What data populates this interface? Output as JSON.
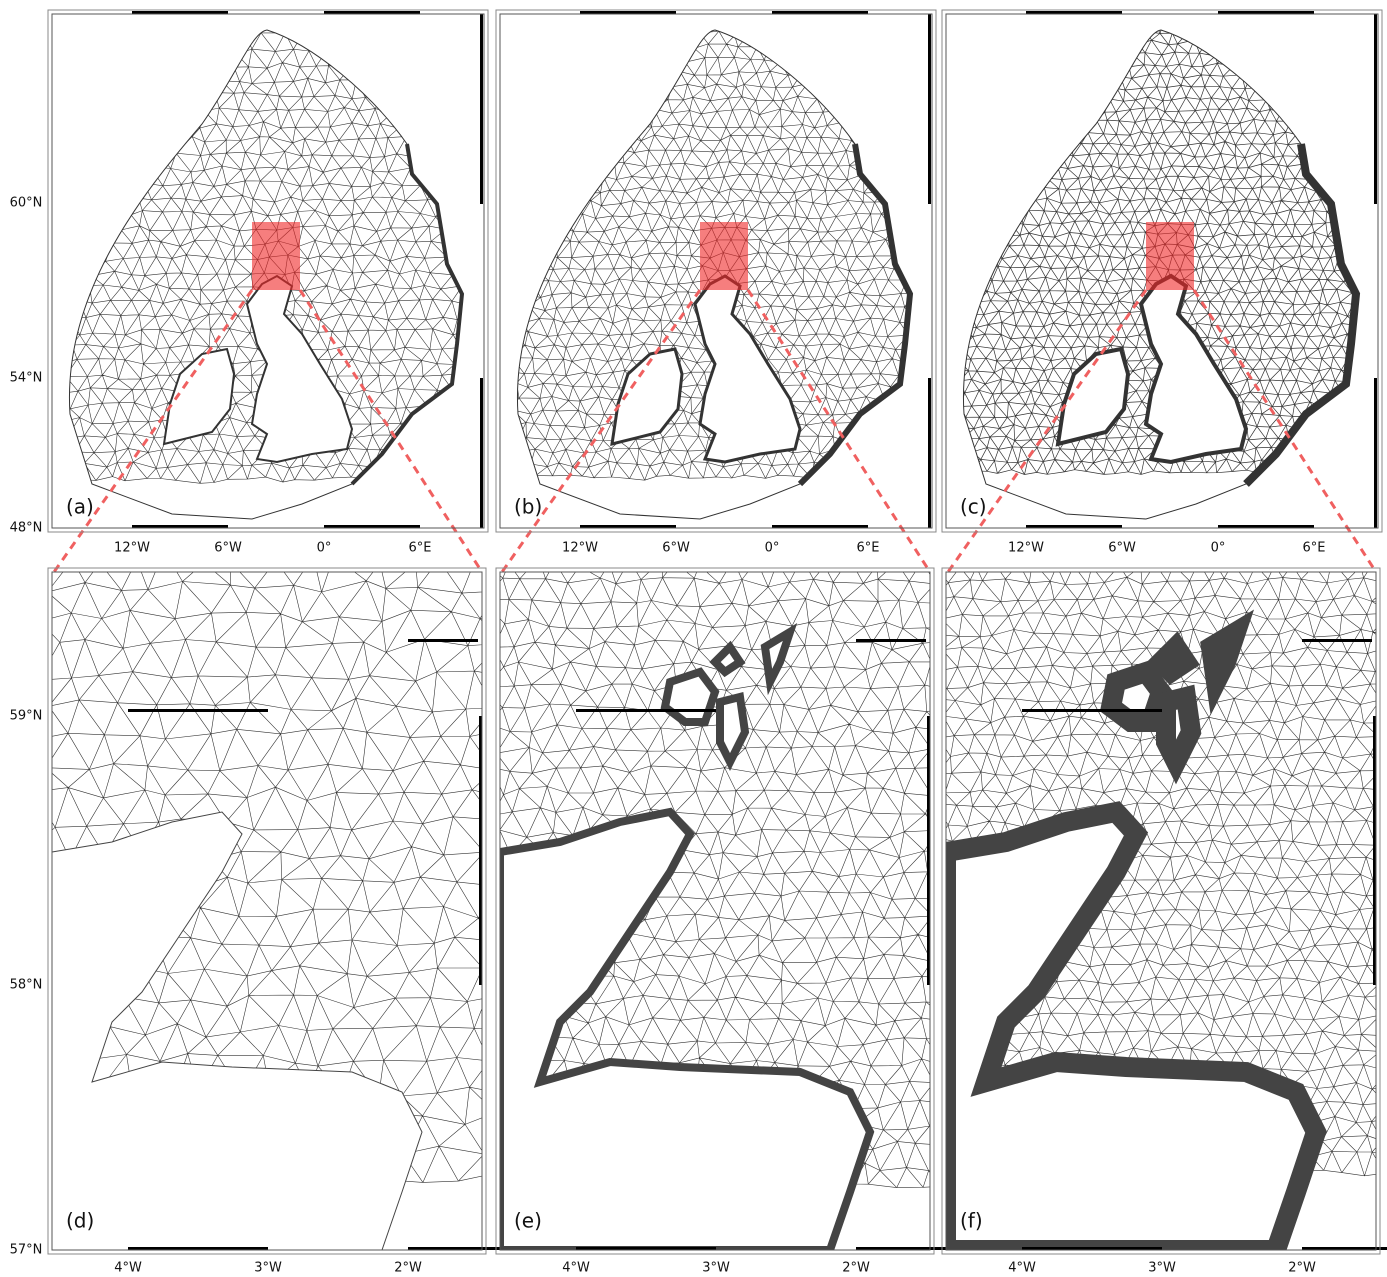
{
  "panels": [
    {
      "label": "(a)"
    },
    {
      "label": "(b)"
    },
    {
      "label": "(c)"
    },
    {
      "label": "(d)"
    },
    {
      "label": "(e)"
    },
    {
      "label": "(f)"
    }
  ],
  "top_axes": {
    "y_labels": [
      "60°N",
      "54°N",
      "48°N"
    ],
    "x_labels": [
      "12°W",
      "6°W",
      "0°",
      "6°E"
    ]
  },
  "bottom_axes": {
    "y_labels": [
      "59°N",
      "58°N",
      "57°N"
    ],
    "x_labels": [
      "4°W",
      "3°W",
      "2°W"
    ]
  }
}
